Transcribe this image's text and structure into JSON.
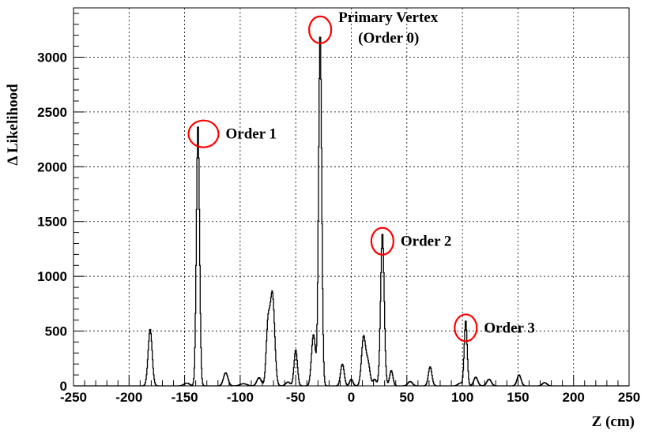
{
  "chart_data": {
    "type": "line",
    "title": "",
    "xlabel": "Z (cm)",
    "ylabel": "Δ Likelihood",
    "xlim": [
      -250,
      250
    ],
    "ylim": [
      0,
      3450
    ],
    "grid": true,
    "x_ticks": [
      -250,
      -200,
      -150,
      -100,
      -50,
      0,
      50,
      100,
      150,
      200,
      250
    ],
    "y_ticks": [
      0,
      500,
      1000,
      1500,
      2000,
      2500,
      3000
    ],
    "x_tick_labels": [
      "-250",
      "-200",
      "-150",
      "-100",
      "-50",
      "0",
      "50",
      "100",
      "150",
      "200",
      "250"
    ],
    "y_tick_labels": [
      "0",
      "500",
      "1000",
      "1500",
      "2000",
      "2500",
      "3000"
    ],
    "peaks": [
      {
        "x": -181,
        "y": 520,
        "w": 1.8
      },
      {
        "x": -148,
        "y": 25,
        "w": 2.5
      },
      {
        "x": -138,
        "y": 2400,
        "w": 1.4
      },
      {
        "x": -113,
        "y": 120,
        "w": 2.0
      },
      {
        "x": -97,
        "y": 20,
        "w": 3.0
      },
      {
        "x": -83,
        "y": 75,
        "w": 2.0
      },
      {
        "x": -75,
        "y": 520,
        "w": 1.6
      },
      {
        "x": -71,
        "y": 840,
        "w": 2.0
      },
      {
        "x": -57,
        "y": 35,
        "w": 2.0
      },
      {
        "x": -50,
        "y": 330,
        "w": 1.5
      },
      {
        "x": -34,
        "y": 470,
        "w": 1.8
      },
      {
        "x": -28,
        "y": 3230,
        "w": 1.4
      },
      {
        "x": -8,
        "y": 200,
        "w": 1.6
      },
      {
        "x": 0,
        "y": 60,
        "w": 1.5
      },
      {
        "x": 11,
        "y": 440,
        "w": 1.8
      },
      {
        "x": 15,
        "y": 210,
        "w": 1.8
      },
      {
        "x": 21,
        "y": 60,
        "w": 1.5
      },
      {
        "x": 28,
        "y": 1400,
        "w": 1.6
      },
      {
        "x": 36,
        "y": 140,
        "w": 1.5
      },
      {
        "x": 53,
        "y": 40,
        "w": 2.0
      },
      {
        "x": 71,
        "y": 175,
        "w": 1.6
      },
      {
        "x": 98,
        "y": 25,
        "w": 2.0
      },
      {
        "x": 103,
        "y": 600,
        "w": 1.3
      },
      {
        "x": 112,
        "y": 80,
        "w": 1.8
      },
      {
        "x": 124,
        "y": 60,
        "w": 2.0
      },
      {
        "x": 151,
        "y": 100,
        "w": 1.8
      },
      {
        "x": 174,
        "y": 30,
        "w": 2.0
      }
    ],
    "annotations": [
      {
        "lines": [
          "Primary Vertex",
          "(Order 0)"
        ],
        "circle_x": -28,
        "circle_y": 3250
      },
      {
        "lines": [
          "Order 1"
        ],
        "circle_x": -133,
        "circle_y": 2300
      },
      {
        "lines": [
          "Order 2"
        ],
        "circle_x": 28,
        "circle_y": 1320
      },
      {
        "lines": [
          "Order 3"
        ],
        "circle_x": 103,
        "circle_y": 530
      }
    ],
    "colors": {
      "line": "#000000",
      "grid": "#000000",
      "circle": "#ff0000"
    }
  }
}
